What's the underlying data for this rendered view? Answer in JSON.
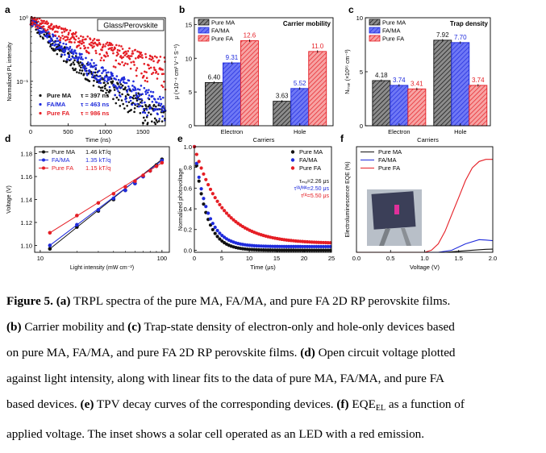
{
  "colors": {
    "ma": "#111111",
    "fama": "#1f2bdc",
    "fa": "#e51e25"
  },
  "panels": {
    "a": {
      "letter": "a",
      "title": "Glass/Perovskite",
      "xlabel": "Time (ns)",
      "ylabel": "Normalized PL intensity",
      "xticks": [
        "0",
        "500",
        "1000",
        "1500"
      ],
      "yticks": [
        "10⁰",
        "10⁻¹"
      ],
      "legend": [
        {
          "name": "Pure MA",
          "tau": "τ = 397 ns"
        },
        {
          "name": "FA/MA",
          "tau": "τ = 463 ns"
        },
        {
          "name": "Pure FA",
          "tau": "τ = 986 ns"
        }
      ]
    },
    "b": {
      "letter": "b",
      "title": "Carrier mobility",
      "xlabel": "Carriers",
      "ylabel": "μ (×10⁻⁴ cm² V⁻¹ S⁻¹)",
      "yticks": [
        "0",
        "5",
        "10",
        "15"
      ],
      "legend": [
        "Pure MA",
        "FA/MA",
        "Pure FA"
      ]
    },
    "c": {
      "letter": "c",
      "title": "Trap density",
      "xlabel": "Carriers",
      "ylabel": "Nₜᵣₐₚ (×10¹⁵ cm⁻³)",
      "yticks": [
        "0",
        "5",
        "10"
      ],
      "legend": [
        "Pure MA",
        "FA/MA",
        "Pure FA"
      ]
    },
    "d": {
      "letter": "d",
      "xlabel": "Light intensity (mW cm⁻²)",
      "ylabel": "Voltage (V)",
      "xticks": [
        "10",
        "100"
      ],
      "yticks": [
        "1.10",
        "1.12",
        "1.14",
        "1.16",
        "1.18"
      ],
      "legend": [
        {
          "name": "Pure MA",
          "fit": "1.46 kT/q"
        },
        {
          "name": "FA/MA",
          "fit": "1.35 kT/q"
        },
        {
          "name": "Pure FA",
          "fit": "1.15 kT/q"
        }
      ]
    },
    "e": {
      "letter": "e",
      "xlabel": "Time (μs)",
      "ylabel": "Normalized photovoltage",
      "xticks": [
        "0",
        "5",
        "10",
        "15",
        "20",
        "25"
      ],
      "yticks": [
        "0.0",
        "0.2",
        "0.4",
        "0.6",
        "0.8",
        "1.0"
      ],
      "legend": [
        "Pure MA",
        "FA/MA",
        "Pure FA"
      ],
      "taus": [
        "τₘₐ=2.26 μs",
        "τᶠᴬ/ᴹᴬ=2.50 μs",
        "τᶠᴬ=5.50 μs"
      ]
    },
    "f": {
      "letter": "f",
      "xlabel": "Voltage (V)",
      "ylabel": "Electroluminescence EQE (%)",
      "xticks": [
        "0.0",
        "0.5",
        "1.0",
        "1.5",
        "2.0"
      ],
      "legend": [
        "Pure MA",
        "FA/MA",
        "Pure FA"
      ]
    }
  },
  "chart_data": [
    {
      "type": "scatter",
      "title": "Glass/Perovskite",
      "xlabel": "Time (ns)",
      "ylabel": "Normalized PL intensity",
      "xlim": [
        0,
        1800
      ],
      "ylim": [
        0.02,
        1
      ],
      "yscale": "log",
      "series": [
        {
          "name": "Pure MA",
          "tau_ns": 397
        },
        {
          "name": "FA/MA",
          "tau_ns": 463
        },
        {
          "name": "Pure FA",
          "tau_ns": 986
        }
      ]
    },
    {
      "type": "bar",
      "title": "Carrier mobility",
      "categories": [
        "Electron",
        "Hole"
      ],
      "xlabel": "Carriers",
      "ylim": [
        0,
        16
      ],
      "series": [
        {
          "name": "Pure MA",
          "values": [
            6.4,
            3.63
          ],
          "labels": [
            "6.40",
            "3.63"
          ]
        },
        {
          "name": "FA/MA",
          "values": [
            9.31,
            5.52
          ],
          "labels": [
            "9.31",
            "5.52"
          ]
        },
        {
          "name": "Pure FA",
          "values": [
            12.6,
            11.0
          ],
          "labels": [
            "12.6",
            "11.0"
          ]
        }
      ]
    },
    {
      "type": "bar",
      "title": "Trap density",
      "categories": [
        "Electron",
        "Hole"
      ],
      "xlabel": "Carriers",
      "ylim": [
        0,
        10
      ],
      "series": [
        {
          "name": "Pure MA",
          "values": [
            4.18,
            7.92
          ],
          "labels": [
            "4.18",
            "7.92"
          ]
        },
        {
          "name": "FA/MA",
          "values": [
            3.74,
            7.7
          ],
          "labels": [
            "3.74",
            "7.70"
          ]
        },
        {
          "name": "Pure FA",
          "values": [
            3.41,
            3.74
          ],
          "labels": [
            "3.41",
            "3.74"
          ]
        }
      ]
    },
    {
      "type": "scatter",
      "xlabel": "Light intensity (mW cm⁻²)",
      "ylabel": "Voltage (V)",
      "xscale": "log",
      "xlim": [
        10,
        110
      ],
      "ylim": [
        1.095,
        1.185
      ],
      "series": [
        {
          "name": "Pure MA",
          "slope_kTq": 1.46,
          "x": [
            12,
            20,
            30,
            40,
            50,
            60,
            70,
            80,
            90,
            100
          ],
          "y": [
            1.097,
            1.116,
            1.13,
            1.14,
            1.148,
            1.154,
            1.16,
            1.165,
            1.17,
            1.175
          ]
        },
        {
          "name": "FA/MA",
          "slope_kTq": 1.35,
          "x": [
            12,
            20,
            30,
            40,
            50,
            60,
            70,
            80,
            90,
            100
          ],
          "y": [
            1.1,
            1.118,
            1.131,
            1.141,
            1.148,
            1.154,
            1.16,
            1.165,
            1.169,
            1.174
          ]
        },
        {
          "name": "Pure FA",
          "slope_kTq": 1.15,
          "x": [
            12,
            20,
            30,
            40,
            50,
            60,
            70,
            80,
            90,
            100
          ],
          "y": [
            1.111,
            1.126,
            1.137,
            1.145,
            1.151,
            1.156,
            1.161,
            1.165,
            1.169,
            1.172
          ]
        }
      ]
    },
    {
      "type": "scatter",
      "xlabel": "Time (μs)",
      "ylabel": "Normalized photovoltage",
      "xlim": [
        0,
        25
      ],
      "ylim": [
        0,
        1
      ],
      "series": [
        {
          "name": "Pure MA",
          "tau_us": 2.26
        },
        {
          "name": "FA/MA",
          "tau_us": 2.5
        },
        {
          "name": "Pure FA",
          "tau_us": 5.5
        }
      ]
    },
    {
      "type": "line",
      "xlabel": "Voltage (V)",
      "ylabel": "Electroluminescence EQE (%)",
      "xlim": [
        0,
        2
      ],
      "series": [
        {
          "name": "Pure MA",
          "x": [
            0,
            1.3,
            1.5,
            1.7,
            1.9,
            2.0
          ],
          "y": [
            0,
            0,
            0.05,
            0.1,
            0.14,
            0.15
          ]
        },
        {
          "name": "FA/MA",
          "x": [
            0,
            1.2,
            1.4,
            1.6,
            1.8,
            1.9,
            2.0
          ],
          "y": [
            0,
            0,
            0.1,
            0.4,
            0.6,
            0.58,
            0.55
          ]
        },
        {
          "name": "Pure FA",
          "x": [
            0,
            1.0,
            1.1,
            1.2,
            1.3,
            1.4,
            1.5,
            1.6,
            1.7,
            1.8,
            1.9,
            2.0
          ],
          "y": [
            0,
            0,
            0.1,
            0.4,
            1.0,
            1.8,
            2.6,
            3.4,
            4.0,
            4.3,
            4.4,
            4.4
          ]
        }
      ]
    }
  ],
  "caption": {
    "lines": [
      [
        {
          "b": true,
          "t": "Figure 5. (a)"
        },
        {
          "t": " TRPL spectra of the pure MA, FA/MA, and pure FA 2D RP perovskite films."
        }
      ],
      [
        {
          "b": true,
          "t": "(b)"
        },
        {
          "t": " Carrier mobility and "
        },
        {
          "b": true,
          "t": "(c)"
        },
        {
          "t": " Trap-state density of electron-only and hole-only devices based"
        }
      ],
      [
        {
          "t": "on pure MA, FA/MA, and pure FA 2D RP perovskite films. "
        },
        {
          "b": true,
          "t": "(d)"
        },
        {
          "t": " Open circuit voltage plotted"
        }
      ],
      [
        {
          "t": "against light intensity, along with linear fits to the data of pure MA, FA/MA, and pure FA"
        }
      ],
      [
        {
          "t": "based devices. "
        },
        {
          "b": true,
          "t": "(e)"
        },
        {
          "t": " TPV decay curves of the corresponding devices. "
        },
        {
          "b": true,
          "t": "(f)"
        },
        {
          "t": " EQE"
        },
        {
          "sub": "EL"
        },
        {
          "t": " as a function of"
        }
      ],
      [
        {
          "t": "applied voltage. The inset shows a solar cell operated as an LED with a red emission."
        }
      ]
    ]
  }
}
